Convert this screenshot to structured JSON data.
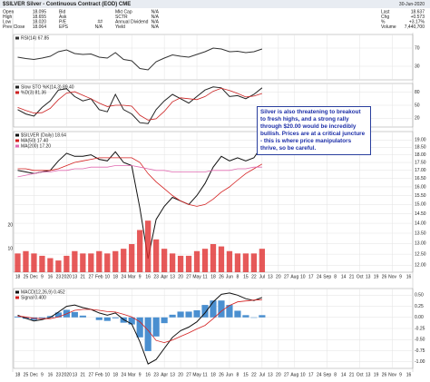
{
  "header": {
    "title": "$SILVER Silver - Continuous Contract (EOD) CME",
    "date": "30-Jun-2020",
    "fields": [
      [
        "Open",
        "18.095"
      ],
      [
        "High",
        "18.655"
      ],
      [
        "Low",
        "18.020"
      ],
      [
        "Prev Close",
        "18.064"
      ],
      [
        "Bid",
        ""
      ],
      [
        "Ask",
        ""
      ],
      [
        "P/E",
        "##"
      ],
      [
        "EPS",
        "N/A"
      ],
      [
        "Mkt Cap",
        "N/A"
      ],
      [
        "SCTR",
        "N/A"
      ],
      [
        "Annual Dividend",
        "N/A"
      ],
      [
        "Yield",
        "N/A"
      ]
    ],
    "quote": [
      [
        "Last",
        "18.637"
      ],
      [
        "Chg",
        "+0.573"
      ],
      [
        "%",
        "+3.17%"
      ],
      [
        "Volume",
        "7,440,700"
      ]
    ]
  },
  "annotation": "Silver is also threatening to breakout to fresh highs, and a strong rally through $20.00 would be incredibly bullish. Prices are at a critical juncture - this is where price manipulators thrive, so be careful.",
  "chart_data": [
    {
      "type": "line",
      "ylim": [
        0,
        100
      ],
      "yticks": [
        30,
        70
      ],
      "grid": true,
      "series": [
        {
          "name": "RSI(14) 67.85",
          "color": "#333333",
          "values": [
            50,
            47,
            45,
            48,
            52,
            62,
            66,
            58,
            56,
            57,
            50,
            48,
            60,
            45,
            42,
            25,
            22,
            40,
            48,
            55,
            52,
            50,
            56,
            62,
            70,
            68,
            62,
            63,
            60,
            62,
            68,
            null,
            null,
            null,
            null,
            null,
            null,
            null,
            null,
            null,
            null,
            null,
            null,
            null,
            null,
            null,
            null,
            null,
            null
          ]
        }
      ]
    },
    {
      "type": "line",
      "ylim": [
        0,
        100
      ],
      "yticks": [
        20,
        50,
        80
      ],
      "grid": true,
      "series": [
        {
          "name": "Slow STO %K(14,3) 89.40",
          "color": "#222222",
          "values": [
            40,
            30,
            25,
            45,
            60,
            85,
            88,
            70,
            60,
            65,
            40,
            35,
            75,
            40,
            30,
            10,
            8,
            40,
            60,
            75,
            65,
            55,
            70,
            85,
            92,
            90,
            70,
            72,
            65,
            75,
            90,
            null,
            null,
            null,
            null,
            null,
            null,
            null,
            null,
            null,
            null,
            null,
            null,
            null,
            null,
            null,
            null,
            null,
            null
          ]
        },
        {
          "name": "%D(3) 81.36",
          "color": "#cc2222",
          "values": [
            45,
            38,
            32,
            33,
            43,
            63,
            78,
            81,
            73,
            65,
            55,
            47,
            50,
            50,
            48,
            27,
            16,
            19,
            36,
            58,
            67,
            65,
            63,
            70,
            82,
            89,
            84,
            77,
            69,
            71,
            77,
            null,
            null,
            null,
            null,
            null,
            null,
            null,
            null,
            null,
            null,
            null,
            null,
            null,
            null,
            null,
            null,
            null,
            null
          ]
        }
      ]
    },
    {
      "type": "line",
      "log_scale": true,
      "ylim": [
        11.7,
        19.6
      ],
      "grid": true,
      "yticks": [
        {
          "value": 12,
          "label": "12.00"
        },
        {
          "value": 12.5,
          "label": "12.50"
        },
        {
          "value": 13,
          "label": "13.00"
        },
        {
          "value": 13.5,
          "label": "13.50"
        },
        {
          "value": 14,
          "label": "14.00"
        },
        {
          "value": 14.5,
          "label": "14.50"
        },
        {
          "value": 15,
          "label": "15.00"
        },
        {
          "value": 15.5,
          "label": "15.50"
        },
        {
          "value": 16,
          "label": "16.00"
        },
        {
          "value": 16.5,
          "label": "16.50"
        },
        {
          "value": 17,
          "label": "17.00"
        },
        {
          "value": 17.5,
          "label": "17.50"
        },
        {
          "value": 18,
          "label": "18.00"
        },
        {
          "value": 18.5,
          "label": "18.50"
        },
        {
          "value": 19,
          "label": "19.00"
        }
      ],
      "categories": [
        "18",
        "25",
        "Dec",
        "9",
        "16",
        "23",
        "2020",
        "13",
        "21",
        "27",
        "Feb",
        "10",
        "18",
        "24",
        "Mar",
        "9",
        "16",
        "23",
        "Apr",
        "13",
        "20",
        "27",
        "May",
        "11",
        "18",
        "26",
        "Jun",
        "8",
        "15",
        "22",
        "Jul",
        "13",
        "20",
        "27",
        "Aug",
        "10",
        "17",
        "24",
        "Sep",
        "8",
        "14",
        "21",
        "Oct",
        "13",
        "19",
        "26",
        "Nov",
        "9",
        "16"
      ],
      "series": [
        {
          "name": "$SILVER (Daily) 18.64",
          "color": "#111111",
          "values": [
            17.0,
            16.9,
            16.8,
            16.9,
            17.0,
            17.6,
            18.1,
            17.9,
            17.9,
            18.0,
            17.7,
            17.6,
            18.2,
            17.5,
            17.3,
            14.8,
            12.3,
            14.2,
            14.9,
            15.4,
            15.2,
            15.0,
            15.5,
            16.2,
            17.2,
            17.9,
            17.6,
            17.8,
            17.6,
            17.8,
            18.6,
            null,
            null,
            null,
            null,
            null,
            null,
            null,
            null,
            null,
            null,
            null,
            null,
            null,
            null,
            null,
            null,
            null,
            null
          ]
        },
        {
          "name": "MA(50) 17.40",
          "color": "#d42020",
          "values": [
            17.1,
            17.1,
            17.0,
            17.0,
            17.0,
            17.1,
            17.3,
            17.5,
            17.6,
            17.7,
            17.8,
            17.8,
            17.8,
            17.8,
            17.8,
            17.5,
            16.8,
            16.3,
            15.9,
            15.5,
            15.2,
            15.0,
            14.9,
            15.0,
            15.3,
            15.7,
            16.0,
            16.4,
            16.8,
            17.1,
            17.4,
            null,
            null,
            null,
            null,
            null,
            null,
            null,
            null,
            null,
            null,
            null,
            null,
            null,
            null,
            null,
            null,
            null,
            null
          ]
        },
        {
          "name": "MA(200) 17.20",
          "color": "#e06ab0",
          "values": [
            16.6,
            16.7,
            16.8,
            16.9,
            16.9,
            17.0,
            17.0,
            17.1,
            17.1,
            17.2,
            17.2,
            17.2,
            17.3,
            17.3,
            17.3,
            17.2,
            17.1,
            17.0,
            17.0,
            16.9,
            16.9,
            16.9,
            16.9,
            16.9,
            17.0,
            17.0,
            17.0,
            17.1,
            17.1,
            17.2,
            17.2,
            null,
            null,
            null,
            null,
            null,
            null,
            null,
            null,
            null,
            null,
            null,
            null,
            null,
            null,
            null,
            null,
            null,
            null
          ]
        }
      ]
    },
    {
      "type": "bar",
      "ylim": [
        0,
        60
      ],
      "yticks": [
        10,
        20
      ],
      "color": "#e03030",
      "values": [
        8,
        9,
        8,
        7,
        6,
        5,
        7,
        9,
        8,
        8,
        9,
        8,
        9,
        10,
        12,
        18,
        22,
        14,
        10,
        8,
        7,
        7,
        9,
        10,
        12,
        11,
        9,
        8,
        8,
        8,
        10,
        null,
        null,
        null,
        null,
        null,
        null,
        null,
        null,
        null,
        null,
        null,
        null,
        null,
        null,
        null,
        null,
        null,
        null
      ]
    },
    {
      "type": "line",
      "ylim": [
        -1.15,
        0.65
      ],
      "grid": true,
      "yticks": [
        {
          "value": 0.5,
          "label": "0.50"
        },
        {
          "value": 0.25,
          "label": "0.25"
        },
        {
          "value": 0,
          "label": "0.00"
        },
        {
          "value": -0.25,
          "label": "-0.25"
        },
        {
          "value": -0.5,
          "label": "-0.50"
        },
        {
          "value": -0.75,
          "label": "-0.75"
        },
        {
          "value": -1,
          "label": "-1.00"
        }
      ],
      "histogram": {
        "color": "#4a8fd0",
        "values": [
          0.02,
          -0.03,
          -0.06,
          -0.02,
          0.03,
          0.11,
          0.17,
          0.12,
          0.04,
          0.0,
          -0.06,
          -0.08,
          -0.02,
          -0.12,
          -0.16,
          -0.45,
          -0.76,
          -0.43,
          -0.13,
          0.06,
          0.13,
          0.13,
          0.16,
          0.28,
          0.38,
          0.38,
          0.28,
          0.15,
          0.05,
          -0.01,
          0.05,
          null,
          null,
          null,
          null,
          null,
          null,
          null,
          null,
          null,
          null,
          null,
          null,
          null,
          null,
          null,
          null,
          null,
          null
        ]
      },
      "series": [
        {
          "name": "MACD(12,26,9) 0.452",
          "color": "#111111",
          "values": [
            0.05,
            -0.02,
            -0.08,
            -0.05,
            0.0,
            0.12,
            0.25,
            0.28,
            0.22,
            0.18,
            0.1,
            0.05,
            0.1,
            -0.05,
            -0.15,
            -0.55,
            -1.05,
            -0.95,
            -0.7,
            -0.45,
            -0.3,
            -0.22,
            -0.1,
            0.1,
            0.35,
            0.52,
            0.55,
            0.5,
            0.42,
            0.38,
            0.45,
            null,
            null,
            null,
            null,
            null,
            null,
            null,
            null,
            null,
            null,
            null,
            null,
            null,
            null,
            null,
            null,
            null,
            null
          ]
        },
        {
          "name": "Signal 0.400",
          "color": "#d42020",
          "values": [
            0.03,
            0.01,
            -0.02,
            -0.03,
            -0.03,
            0.01,
            0.08,
            0.16,
            0.18,
            0.18,
            0.16,
            0.13,
            0.12,
            0.07,
            0.01,
            -0.1,
            -0.29,
            -0.52,
            -0.57,
            -0.51,
            -0.43,
            -0.35,
            -0.26,
            -0.18,
            -0.03,
            0.14,
            0.27,
            0.35,
            0.37,
            0.39,
            0.4,
            null,
            null,
            null,
            null,
            null,
            null,
            null,
            null,
            null,
            null,
            null,
            null,
            null,
            null,
            null,
            null,
            null,
            null
          ]
        }
      ]
    }
  ]
}
